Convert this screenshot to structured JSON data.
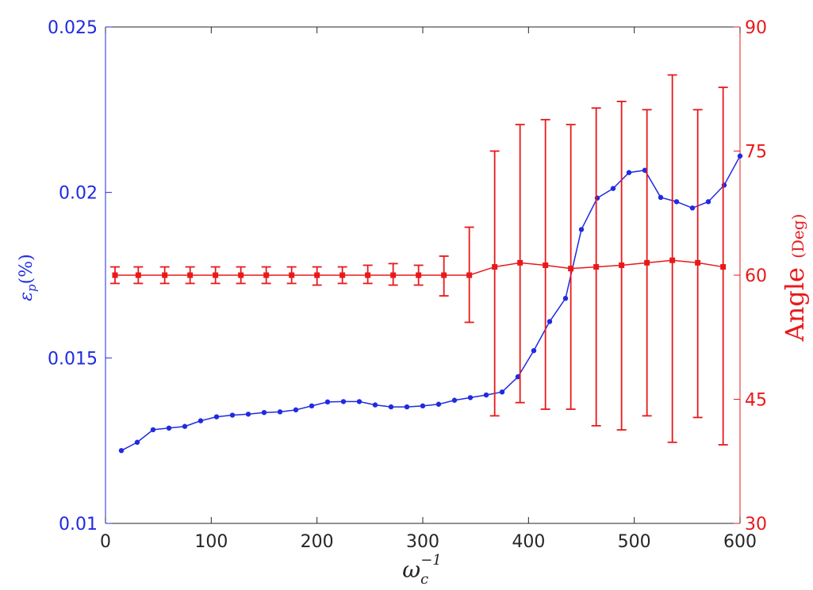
{
  "chart_data": {
    "type": "line",
    "x_axis": {
      "ticks": [
        0,
        100,
        200,
        300,
        400,
        500,
        600
      ],
      "tick_labels": [
        "0",
        "100",
        "200",
        "300",
        "400",
        "500",
        "600"
      ],
      "range": [
        0,
        600
      ],
      "label": "ω_c^{-1}"
    },
    "y_left": {
      "ticks": [
        0.01,
        0.015,
        0.02,
        0.025
      ],
      "tick_labels": [
        "0.01",
        "0.015",
        "0.02",
        "0.025"
      ],
      "range": [
        0.01,
        0.025
      ],
      "label": "ε_p(%)",
      "color": "#1f2be0"
    },
    "y_right": {
      "ticks": [
        30,
        45,
        60,
        75,
        90
      ],
      "tick_labels": [
        "30",
        "45",
        "60",
        "75",
        "90"
      ],
      "range": [
        30,
        90
      ],
      "label": "Angle (Deg)",
      "label_main": "Angle",
      "label_sub": "(Deg)",
      "color": "#e8191b"
    },
    "grid": false,
    "series": [
      {
        "axis": "left",
        "color": "#1f2be0",
        "marker": "circle",
        "x": [
          15,
          30,
          45,
          60,
          75,
          90,
          105,
          120,
          135,
          150,
          165,
          180,
          195,
          210,
          225,
          240,
          255,
          270,
          285,
          300,
          315,
          330,
          345,
          360,
          375,
          390,
          405,
          420,
          435,
          450,
          465,
          480,
          495,
          510,
          525,
          540,
          555,
          570,
          585,
          600
        ],
        "values": [
          0.0122,
          0.01245,
          0.01283,
          0.01288,
          0.01293,
          0.0131,
          0.01322,
          0.01327,
          0.0133,
          0.01335,
          0.01337,
          0.01343,
          0.01355,
          0.01367,
          0.01368,
          0.01368,
          0.01358,
          0.01352,
          0.01352,
          0.01355,
          0.0136,
          0.01372,
          0.0138,
          0.01388,
          0.01397,
          0.01443,
          0.01522,
          0.0161,
          0.0168,
          0.01888,
          0.01983,
          0.02012,
          0.0206,
          0.02067,
          0.01985,
          0.01972,
          0.01953,
          0.01972,
          0.02022,
          0.0211
        ]
      },
      {
        "axis": "right",
        "color": "#e8191b",
        "marker": "square",
        "x": [
          9,
          31,
          56,
          80,
          104,
          128,
          152,
          176,
          200,
          224,
          248,
          272,
          296,
          320,
          344,
          368,
          392,
          416,
          440,
          464,
          488,
          512,
          536,
          560,
          584
        ],
        "values": [
          60,
          60,
          60,
          60,
          60,
          60,
          60,
          60,
          60,
          60,
          60,
          60,
          60,
          60,
          60,
          61,
          61.5,
          61.2,
          60.8,
          61,
          61.2,
          61.5,
          61.8,
          61.5,
          61
        ],
        "error_low": [
          59,
          59,
          59,
          59,
          59,
          59,
          59,
          59,
          58.8,
          59,
          59,
          58.8,
          58.8,
          57.5,
          54.3,
          43,
          44.6,
          43.8,
          43.8,
          41.8,
          41.3,
          43,
          39.8,
          42.8,
          39.5
        ],
        "error_high": [
          61,
          61,
          61,
          61,
          61,
          61,
          61,
          61,
          61,
          61,
          61.2,
          61.4,
          61.2,
          62.3,
          65.8,
          75,
          78.2,
          78.8,
          78.2,
          80.2,
          81,
          80,
          84.2,
          80,
          82.7
        ]
      }
    ]
  }
}
